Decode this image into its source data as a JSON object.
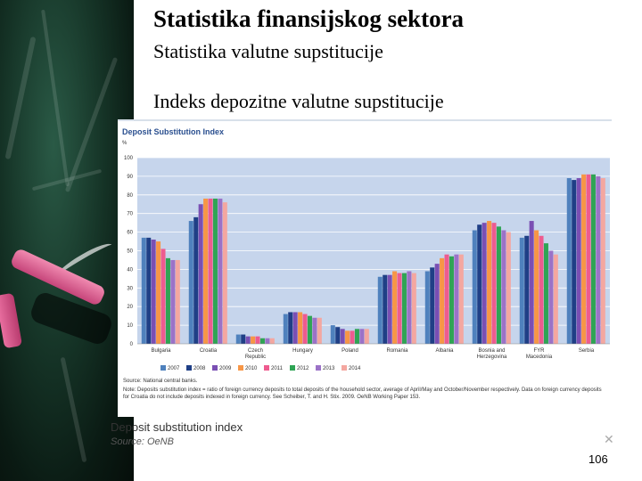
{
  "slide": {
    "title": "Statistika finansijskog sektora",
    "subtitle": "Statistika valutne supstitucije",
    "section": "Indeks depozitne valutne supstitucije",
    "caption_title": "Deposit substitution index",
    "caption_source": "Source: OeNB",
    "close_symbol": "✕",
    "page_number": "106"
  },
  "chart_data": {
    "type": "bar",
    "title": "Deposit Substitution Index",
    "unit": "%",
    "ylim": [
      0,
      100
    ],
    "yticks": [
      0,
      10,
      20,
      30,
      40,
      50,
      60,
      70,
      80,
      90,
      100
    ],
    "grid": true,
    "legend_position": "bottom",
    "categories": [
      "Bulgaria",
      "Croatia",
      "Czech Republic",
      "Hungary",
      "Poland",
      "Romania",
      "Albania",
      "Bosnia and Herzegovina",
      "FYR Macedonia",
      "Serbia"
    ],
    "series": [
      {
        "name": "2007",
        "color": "#4f81bd",
        "values": [
          57,
          66,
          5,
          16,
          10,
          36,
          39,
          61,
          57,
          89
        ]
      },
      {
        "name": "2008",
        "color": "#1f3f86",
        "values": [
          57,
          68,
          5,
          17,
          9,
          37,
          41,
          64,
          58,
          88
        ]
      },
      {
        "name": "2009",
        "color": "#7a4fb3",
        "values": [
          56,
          75,
          4,
          17,
          8,
          37,
          43,
          65,
          66,
          89
        ]
      },
      {
        "name": "2010",
        "color": "#f79646",
        "values": [
          55,
          78,
          4,
          17,
          7,
          39,
          46,
          66,
          61,
          91
        ]
      },
      {
        "name": "2011",
        "color": "#ee5b8f",
        "values": [
          51,
          78,
          4,
          16,
          7,
          38,
          48,
          65,
          58,
          91
        ]
      },
      {
        "name": "2012",
        "color": "#2fa454",
        "values": [
          46,
          78,
          3,
          15,
          8,
          38,
          47,
          63,
          54,
          91
        ]
      },
      {
        "name": "2013",
        "color": "#9b72c7",
        "values": [
          45,
          78,
          3,
          14,
          8,
          39,
          48,
          61,
          50,
          90
        ]
      },
      {
        "name": "2014",
        "color": "#f4a7a0",
        "values": [
          45,
          76,
          3,
          14,
          8,
          38,
          48,
          60,
          48,
          89
        ]
      }
    ],
    "source": "Source: National central banks.",
    "note": "Note: Deposits substitution index = ratio of foreign currency deposits to total deposits of the household sector, average of April/May and October/November respectively. Data on foreign currency deposits for Croatia do not include deposits indexed in foreign currency. See Scheiber, T. and H. Stix. 2009. OeNB Working Paper 153."
  }
}
